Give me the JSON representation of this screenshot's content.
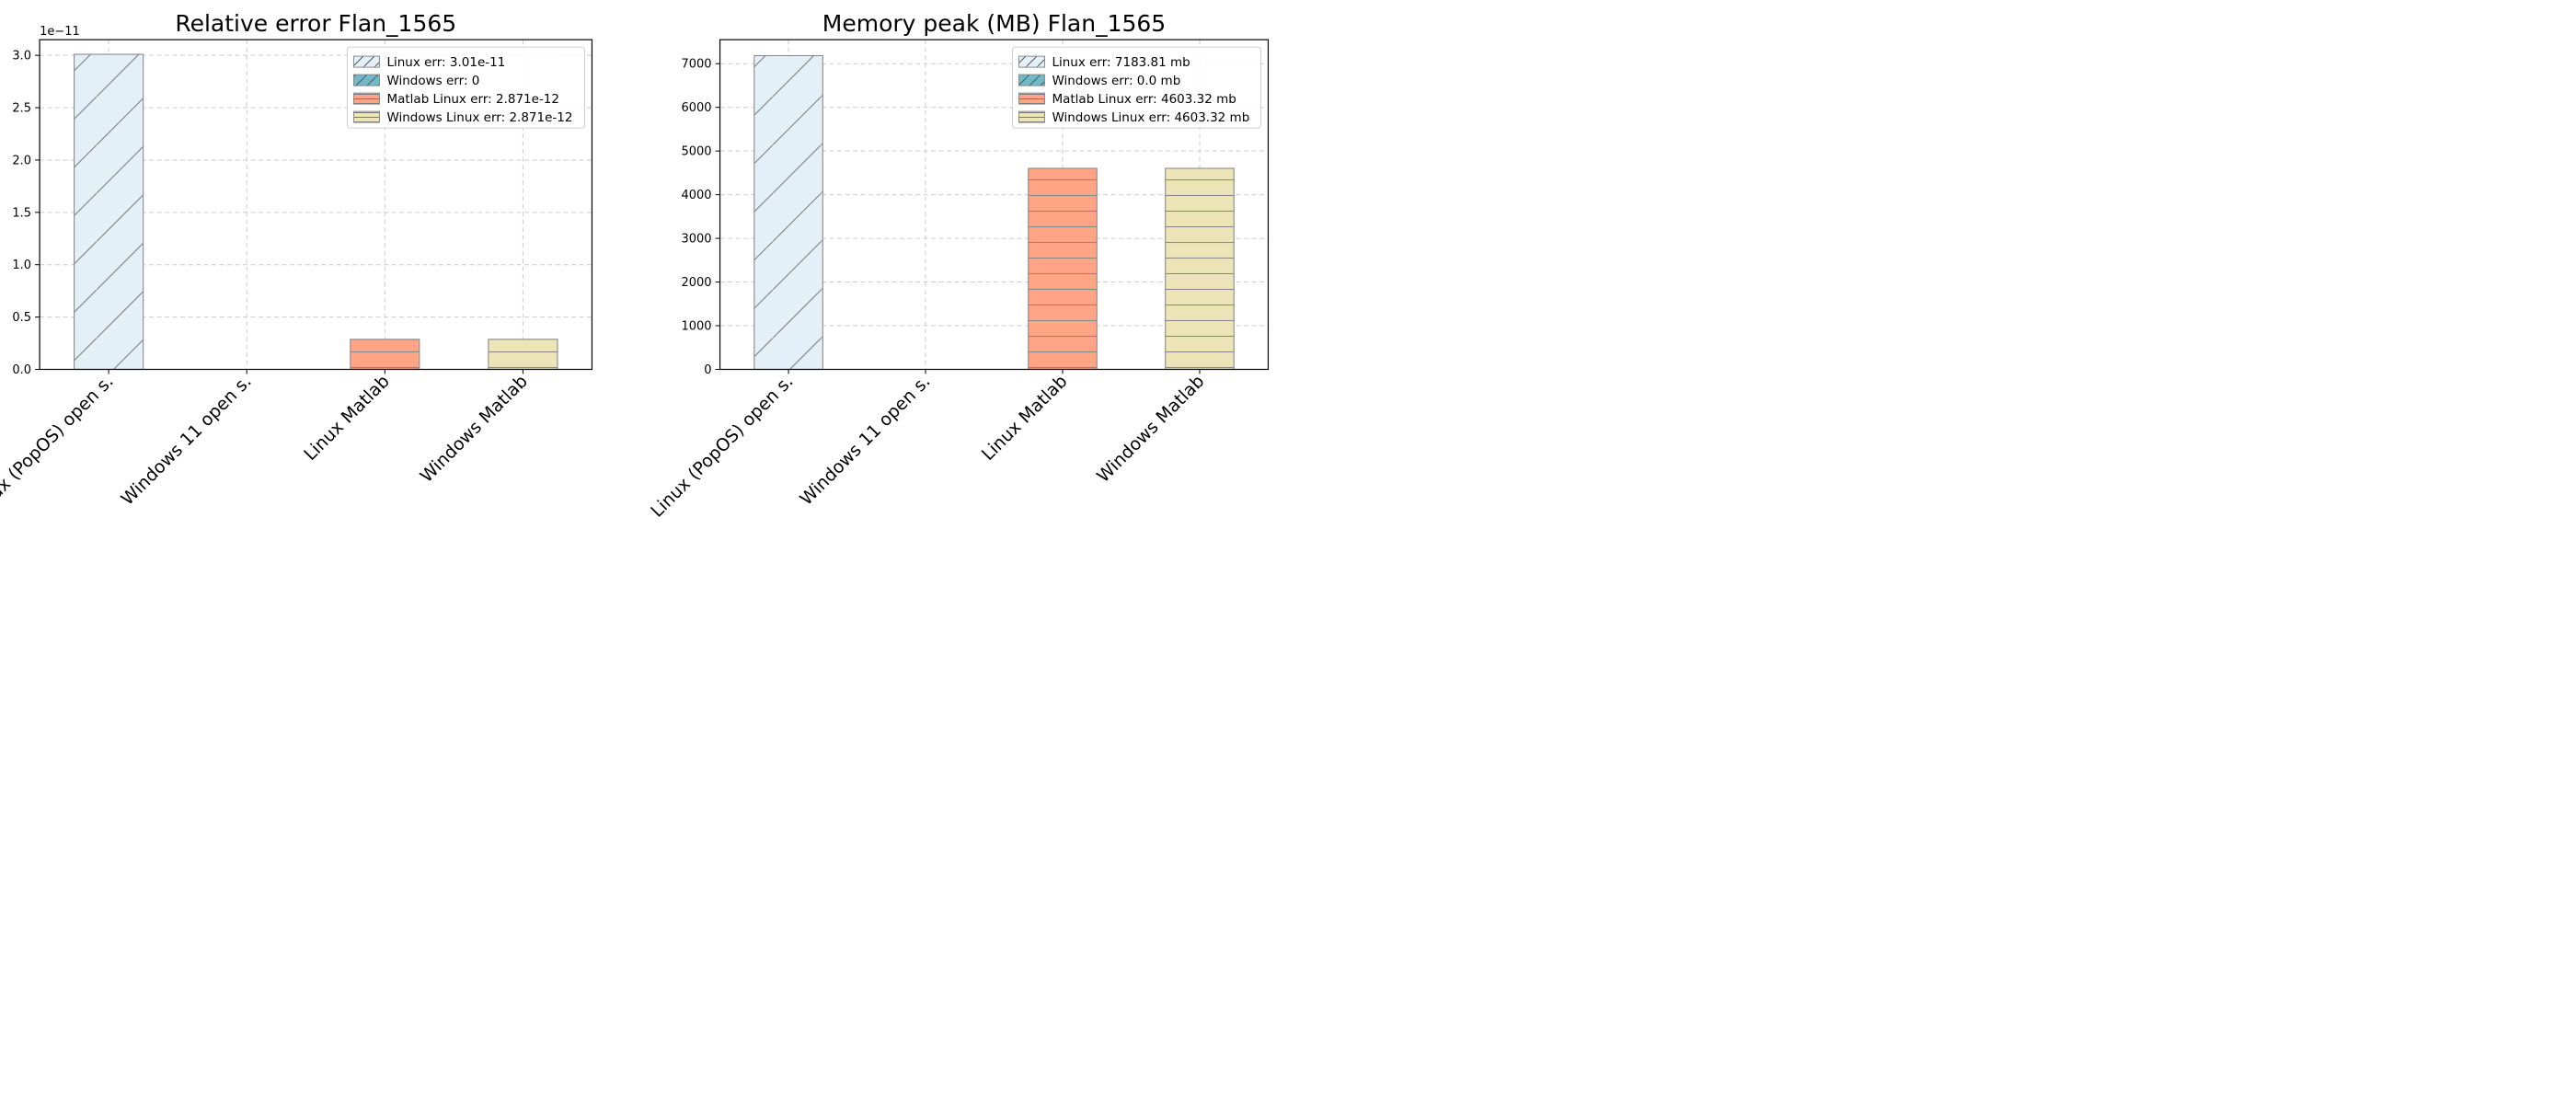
{
  "colors": {
    "linux": "#e4f0f7",
    "windows": "#6fbac8",
    "matlab_linux": "#ffa484",
    "windows_matlab": "#ede5b7",
    "bar_edge": "#8a8a8a",
    "grid": "#cccccc"
  },
  "chart_data": [
    {
      "type": "bar",
      "title": "Relative error Flan_1565",
      "xlabel": "",
      "ylabel": "",
      "categories": [
        "Linux (PopOS) open s.",
        "Windows 11 open s.",
        "Linux Matlab",
        "Windows Matlab"
      ],
      "values": [
        3.01e-11,
        0,
        2.871e-12,
        2.871e-12
      ],
      "ylim": [
        0,
        3.15e-11
      ],
      "y_offset_label": "1e−11",
      "y_ticks": [
        0,
        5e-12,
        1e-11,
        1.5e-11,
        2e-11,
        2.5e-11,
        3e-11
      ],
      "y_tick_labels": [
        "0.0",
        "0.5",
        "1.0",
        "1.5",
        "2.0",
        "2.5",
        "3.0"
      ],
      "grid": true,
      "legend_position": "top-right",
      "legend": [
        "Linux err: 3.01e-11",
        "Windows err: 0",
        "Matlab Linux err: 2.871e-12",
        "Windows Linux err: 2.871e-12"
      ]
    },
    {
      "type": "bar",
      "title": "Memory peak (MB) Flan_1565",
      "xlabel": "",
      "ylabel": "",
      "categories": [
        "Linux (PopOS) open s.",
        "Windows 11 open s.",
        "Linux Matlab",
        "Windows Matlab"
      ],
      "values": [
        7183.81,
        0.0,
        4603.32,
        4603.32
      ],
      "ylim": [
        0,
        7550
      ],
      "y_offset_label": "",
      "y_ticks": [
        0,
        1000,
        2000,
        3000,
        4000,
        5000,
        6000,
        7000
      ],
      "y_tick_labels": [
        "0",
        "1000",
        "2000",
        "3000",
        "4000",
        "5000",
        "6000",
        "7000"
      ],
      "grid": true,
      "legend_position": "top-right",
      "legend": [
        "Linux err: 7183.81 mb",
        "Windows err: 0.0 mb",
        "Matlab Linux err: 4603.32 mb",
        "Windows Linux err: 4603.32 mb"
      ]
    }
  ]
}
